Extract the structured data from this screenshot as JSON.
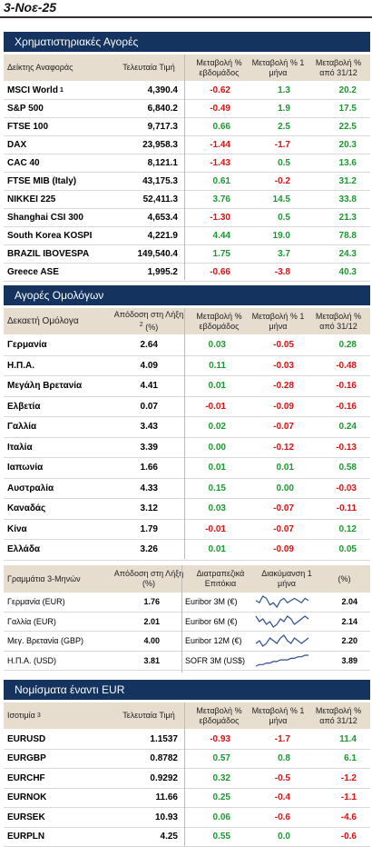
{
  "date": "3-Νοε-25",
  "stock": {
    "title": "Χρηματιστηριακές Αγορές",
    "headers": [
      "Δείκτης Αναφοράς",
      "Τελευταία Τιμή",
      "Μεταβολή % εβδομάδος",
      "Μεταβολή % 1 μήνα",
      "Μεταβολή % από 31/12"
    ],
    "rows": [
      {
        "name": "MSCI World",
        "sup": "1",
        "price": "4,390.4",
        "w": "-0.62",
        "m": "1.3",
        "y": "20.2"
      },
      {
        "name": "S&P 500",
        "sup": "",
        "price": "6,840.2",
        "w": "-0.49",
        "m": "1.9",
        "y": "17.5"
      },
      {
        "name": "FTSE 100",
        "sup": "",
        "price": "9,717.3",
        "w": "0.66",
        "m": "2.5",
        "y": "22.5"
      },
      {
        "name": "DAX",
        "sup": "",
        "price": "23,958.3",
        "w": "-1.44",
        "m": "-1.7",
        "y": "20.3"
      },
      {
        "name": "CAC 40",
        "sup": "",
        "price": "8,121.1",
        "w": "-1.43",
        "m": "0.5",
        "y": "13.6"
      },
      {
        "name": "FTSE MIB (Italy)",
        "sup": "",
        "price": "43,175.3",
        "w": "0.61",
        "m": "-0.2",
        "y": "31.2"
      },
      {
        "name": "NIKKEI 225",
        "sup": "",
        "price": "52,411.3",
        "w": "3.76",
        "m": "14.5",
        "y": "33.8"
      },
      {
        "name": "Shanghai CSI 300",
        "sup": "",
        "price": "4,653.4",
        "w": "-1.30",
        "m": "0.5",
        "y": "21.3"
      },
      {
        "name": "South Korea KOSPI",
        "sup": "",
        "price": "4,221.9",
        "w": "4.44",
        "m": "19.0",
        "y": "78.8"
      },
      {
        "name": "BRAZIL IBOVESPA",
        "sup": "",
        "price": "149,540.4",
        "w": "1.75",
        "m": "3.7",
        "y": "24.3"
      },
      {
        "name": "Greece ASE",
        "sup": "",
        "price": "1,995.2",
        "w": "-0.66",
        "m": "-3.8",
        "y": "40.3"
      }
    ]
  },
  "bonds": {
    "title": "Αγορές Ομολόγων",
    "headers": [
      "Δεκαετή Ομόλογα",
      "Απόδοση στη Λήξη",
      "(%)",
      "Μεταβολή % εβδομάδος",
      "Μεταβολή % 1 μήνα",
      "Μεταβολή % από 31/12"
    ],
    "sup": "2",
    "rows": [
      {
        "name": "Γερμανία",
        "yield": "2.64",
        "w": "0.03",
        "m": "-0.05",
        "y": "0.28"
      },
      {
        "name": "Η.Π.Α.",
        "yield": "4.09",
        "w": "0.11",
        "m": "-0.03",
        "y": "-0.48"
      },
      {
        "name": "Μεγάλη Βρετανία",
        "yield": "4.41",
        "w": "0.01",
        "m": "-0.28",
        "y": "-0.16"
      },
      {
        "name": "Ελβετία",
        "yield": "0.07",
        "w": "-0.01",
        "m": "-0.09",
        "y": "-0.16"
      },
      {
        "name": "Γαλλία",
        "yield": "3.43",
        "w": "0.02",
        "m": "-0.07",
        "y": "0.24"
      },
      {
        "name": "Ιταλία",
        "yield": "3.39",
        "w": "0.00",
        "m": "-0.12",
        "y": "-0.13"
      },
      {
        "name": "Ιαπωνία",
        "yield": "1.66",
        "w": "0.01",
        "m": "0.01",
        "y": "0.58"
      },
      {
        "name": "Αυστραλία",
        "yield": "4.33",
        "w": "0.15",
        "m": "0.00",
        "y": "-0.03"
      },
      {
        "name": "Καναδάς",
        "yield": "3.12",
        "w": "0.03",
        "m": "-0.07",
        "y": "-0.11"
      },
      {
        "name": "Κίνα",
        "yield": "1.79",
        "w": "-0.01",
        "m": "-0.07",
        "y": "0.12"
      },
      {
        "name": "Ελλάδα",
        "yield": "3.26",
        "w": "0.01",
        "m": "-0.09",
        "y": "0.05"
      }
    ]
  },
  "bills": {
    "headers": [
      "Γραμμάτια 3-Μηνών",
      "Απόδοση στη Λήξη",
      "(%)",
      "Διατραπεζικά Επιτόκια",
      "Διακύμανση 1 μήνα",
      "(%)"
    ],
    "rows": [
      {
        "name": "Γερμανία (EUR)",
        "yield": "1.76",
        "rate": "Euribor 3M (€)",
        "pct": "2.04",
        "spark": [
          5,
          4,
          7,
          6,
          3,
          4,
          2,
          5,
          6,
          4,
          5,
          6,
          5,
          4,
          6,
          5
        ]
      },
      {
        "name": "Γαλλία (EUR)",
        "yield": "2.01",
        "rate": "Euribor 6M (€)",
        "pct": "2.14",
        "spark": [
          7,
          5,
          6,
          4,
          5,
          3,
          4,
          6,
          5,
          7,
          6,
          4,
          5,
          6,
          7,
          6
        ]
      },
      {
        "name": "Μεγ. Βρετανία (GBP)",
        "yield": "4.00",
        "rate": "Euribor 12M (€)",
        "pct": "2.20",
        "spark": [
          4,
          5,
          3,
          4,
          6,
          5,
          4,
          6,
          7,
          5,
          4,
          6,
          5,
          4,
          5,
          6
        ]
      },
      {
        "name": "Η.Π.Α. (USD)",
        "yield": "3.81",
        "rate": "SOFR 3M (US$)",
        "pct": "3.89",
        "spark": [
          2,
          3,
          3,
          4,
          4,
          5,
          5,
          6,
          6,
          6,
          7,
          7,
          8,
          8,
          9,
          9
        ]
      }
    ]
  },
  "fx": {
    "title": "Νομίσματα έναντι EUR",
    "headers": [
      "Ισοτιμία",
      "Τελευταία Τιμή",
      "Μεταβολή % εβδομάδος",
      "Μεταβολή % 1 μήνα",
      "Μεταβολή % από 31/12"
    ],
    "sup": "3",
    "rows": [
      {
        "name": "EURUSD",
        "price": "1.1537",
        "w": "-0.93",
        "m": "-1.7",
        "y": "11.4"
      },
      {
        "name": "EURGBP",
        "price": "0.8782",
        "w": "0.57",
        "m": "0.8",
        "y": "6.1"
      },
      {
        "name": "EURCHF",
        "price": "0.9292",
        "w": "0.32",
        "m": "-0.5",
        "y": "-1.2"
      },
      {
        "name": "EURNOK",
        "price": "11.66",
        "w": "0.25",
        "m": "-0.4",
        "y": "-1.1"
      },
      {
        "name": "EURSEK",
        "price": "10.93",
        "w": "0.06",
        "m": "-0.6",
        "y": "-4.6"
      },
      {
        "name": "EURPLN",
        "price": "4.25",
        "w": "0.55",
        "m": "0.0",
        "y": "-0.6"
      }
    ]
  }
}
